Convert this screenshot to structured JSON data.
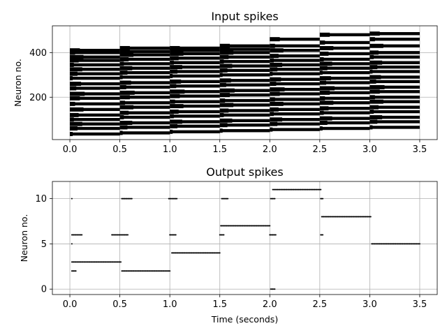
{
  "chart_data": [
    {
      "type": "scatter",
      "title": "Input spikes",
      "xlabel": "",
      "ylabel": "Neuron no.",
      "xlim": [
        -0.175,
        3.675
      ],
      "ylim": [
        10,
        520
      ],
      "xticks": [
        0.0,
        0.5,
        1.0,
        1.5,
        2.0,
        2.5,
        3.0,
        3.5
      ],
      "xtick_labels": [
        "0.0",
        "0.5",
        "1.0",
        "1.5",
        "2.0",
        "2.5",
        "3.0",
        "3.5"
      ],
      "yticks": [
        200,
        400
      ],
      "ytick_labels": [
        "200",
        "400"
      ],
      "grid": true,
      "marker_color": "#000000",
      "segment_boundaries": [
        0.0,
        0.5,
        1.0,
        1.5,
        2.0,
        2.5,
        3.0,
        3.5
      ],
      "dense_bands_neurons": [
        [
          35,
          60,
          80,
          100,
          120,
          145,
          170,
          195,
          215,
          240,
          260,
          285,
          305,
          325,
          345,
          365,
          380,
          400,
          410
        ],
        [
          40,
          65,
          85,
          110,
          130,
          155,
          175,
          200,
          220,
          245,
          265,
          290,
          310,
          330,
          350,
          370,
          390,
          405,
          420
        ],
        [
          45,
          70,
          90,
          115,
          135,
          160,
          180,
          205,
          225,
          250,
          270,
          295,
          315,
          335,
          355,
          375,
          395,
          410,
          420
        ],
        [
          50,
          75,
          95,
          120,
          140,
          165,
          185,
          210,
          230,
          255,
          275,
          300,
          320,
          340,
          360,
          380,
          400,
          415,
          430
        ],
        [
          55,
          80,
          100,
          125,
          145,
          170,
          190,
          215,
          235,
          260,
          280,
          305,
          325,
          345,
          365,
          385,
          410,
          430,
          460
        ],
        [
          60,
          85,
          105,
          130,
          150,
          175,
          195,
          220,
          240,
          265,
          285,
          310,
          330,
          350,
          370,
          395,
          420,
          445,
          480
        ],
        [
          65,
          90,
          110,
          135,
          155,
          180,
          200,
          225,
          245,
          270,
          290,
          315,
          335,
          355,
          380,
          400,
          430,
          460,
          485
        ],
        [
          70,
          95,
          115,
          140,
          160,
          185,
          205,
          230,
          250,
          275,
          295,
          320,
          340,
          365,
          385,
          410,
          440,
          470,
          495
        ]
      ]
    },
    {
      "type": "scatter",
      "title": "Output spikes",
      "xlabel": "Time (seconds)",
      "ylabel": "Neuron no.",
      "xlim": [
        -0.175,
        3.675
      ],
      "ylim": [
        -0.6,
        11.9
      ],
      "xticks": [
        0.0,
        0.5,
        1.0,
        1.5,
        2.0,
        2.5,
        3.0,
        3.5
      ],
      "xtick_labels": [
        "0.0",
        "0.5",
        "1.0",
        "1.5",
        "2.0",
        "2.5",
        "3.0",
        "3.5"
      ],
      "yticks": [
        0,
        5,
        10
      ],
      "ytick_labels": [
        "0",
        "5",
        "10"
      ],
      "grid": true,
      "marker_color": "#000000",
      "spike_runs": [
        {
          "neuron": 10,
          "start": 0.02,
          "end": 0.02
        },
        {
          "neuron": 6,
          "start": 0.02,
          "end": 0.12
        },
        {
          "neuron": 5,
          "start": 0.02,
          "end": 0.02
        },
        {
          "neuron": 3,
          "start": 0.02,
          "end": 0.51
        },
        {
          "neuron": 2,
          "start": 0.02,
          "end": 0.06
        },
        {
          "neuron": 6,
          "start": 0.42,
          "end": 0.58
        },
        {
          "neuron": 10,
          "start": 0.52,
          "end": 0.62
        },
        {
          "neuron": 2,
          "start": 0.52,
          "end": 1.0
        },
        {
          "neuron": 10,
          "start": 0.99,
          "end": 1.07
        },
        {
          "neuron": 6,
          "start": 1.0,
          "end": 1.06
        },
        {
          "neuron": 4,
          "start": 1.02,
          "end": 1.5
        },
        {
          "neuron": 10,
          "start": 1.52,
          "end": 1.58
        },
        {
          "neuron": 6,
          "start": 1.5,
          "end": 1.54
        },
        {
          "neuron": 7,
          "start": 1.51,
          "end": 2.0
        },
        {
          "neuron": 10,
          "start": 2.01,
          "end": 2.05
        },
        {
          "neuron": 6,
          "start": 2.0,
          "end": 2.06
        },
        {
          "neuron": 0,
          "start": 2.01,
          "end": 2.05
        },
        {
          "neuron": 11,
          "start": 2.03,
          "end": 2.51
        },
        {
          "neuron": 10,
          "start": 2.51,
          "end": 2.53
        },
        {
          "neuron": 6,
          "start": 2.51,
          "end": 2.53
        },
        {
          "neuron": 8,
          "start": 2.52,
          "end": 3.01
        },
        {
          "neuron": 5,
          "start": 3.02,
          "end": 3.5
        }
      ]
    }
  ]
}
